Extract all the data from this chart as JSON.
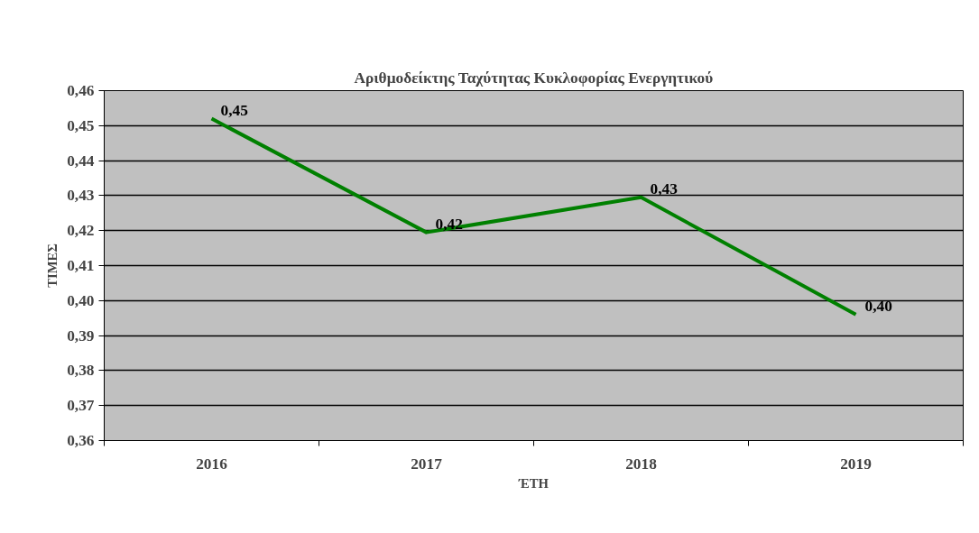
{
  "chart_data": {
    "type": "line",
    "title": "Αριθμοδείκτης Ταχύτητας Κυκλοφορίας Ενεργητικού",
    "xlabel": "ΈΤΗ",
    "ylabel": "ΤΙΜΕΣ",
    "categories": [
      "2016",
      "2017",
      "2018",
      "2019"
    ],
    "series": [
      {
        "color": "#008000",
        "values": [
          0.452,
          0.4195,
          0.4295,
          0.396
        ],
        "value_labels": [
          "0,45",
          "0,42",
          "0,43",
          "0,40"
        ]
      }
    ],
    "ylim": [
      0.36,
      0.46
    ],
    "yticks": [
      {
        "value": 0.36,
        "label": "0,36"
      },
      {
        "value": 0.37,
        "label": "0,37"
      },
      {
        "value": 0.38,
        "label": "0,38"
      },
      {
        "value": 0.39,
        "label": "0,39"
      },
      {
        "value": 0.4,
        "label": "0,40"
      },
      {
        "value": 0.41,
        "label": "0,41"
      },
      {
        "value": 0.42,
        "label": "0,42"
      },
      {
        "value": 0.43,
        "label": "0,43"
      },
      {
        "value": 0.44,
        "label": "0,44"
      },
      {
        "value": 0.45,
        "label": "0,45"
      },
      {
        "value": 0.46,
        "label": "0,46"
      }
    ],
    "grid": "y",
    "marker": "none",
    "line_style": "solid"
  }
}
